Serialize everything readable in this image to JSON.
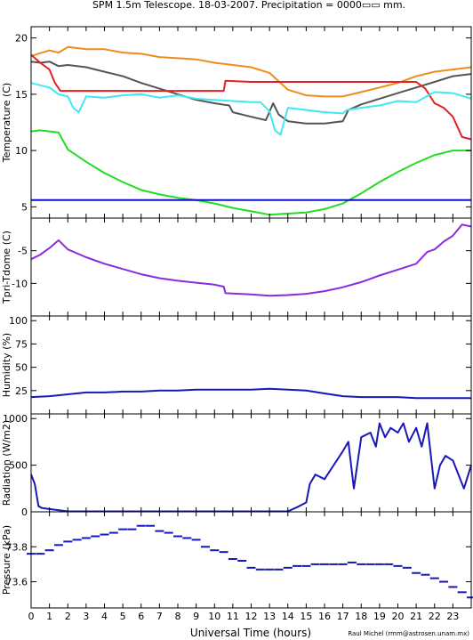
{
  "title": "SPM 1.5m Telescope. 18-03-2007. Precipitation = 0000▭▭ mm.",
  "xlabel": "Universal Time (hours)",
  "credit": "Raul Michel (rmm@astrosen.unam.mx)",
  "chart_data": [
    {
      "type": "line",
      "ylabel": "Temperature (C)",
      "xlim": [
        0,
        24
      ],
      "ylim": [
        4,
        21
      ],
      "yticks": [
        5,
        10,
        15,
        20
      ],
      "xticks": [
        0,
        1,
        2,
        3,
        4,
        5,
        6,
        7,
        8,
        9,
        10,
        11,
        12,
        13,
        14,
        15,
        16,
        17,
        18,
        19,
        20,
        21,
        22,
        23
      ],
      "series": [
        {
          "color": "#f08c1e",
          "x": [
            0,
            1,
            1.5,
            2,
            3,
            4,
            5,
            6,
            7,
            8,
            9,
            10,
            11,
            12,
            13,
            14,
            15,
            16,
            17,
            18,
            19,
            20,
            21,
            22,
            23,
            24
          ],
          "y": [
            18.4,
            18.9,
            18.7,
            19.2,
            19.0,
            19.0,
            18.7,
            18.6,
            18.3,
            18.2,
            18.1,
            17.8,
            17.6,
            17.4,
            16.9,
            15.4,
            14.9,
            14.8,
            14.8,
            15.2,
            15.6,
            16.0,
            16.6,
            17.0,
            17.2,
            17.4
          ]
        },
        {
          "color": "#555555",
          "x": [
            0,
            0.5,
            1,
            1.5,
            2,
            3,
            4,
            5,
            6,
            7,
            8,
            9,
            10,
            10.8,
            11,
            12,
            12.8,
            13.2,
            13.5,
            14,
            15,
            16,
            17,
            17.3,
            18,
            19,
            20,
            21,
            22,
            23,
            24
          ],
          "y": [
            17.9,
            17.8,
            17.9,
            17.5,
            17.6,
            17.4,
            17.0,
            16.6,
            16.0,
            15.5,
            15.0,
            14.5,
            14.2,
            14.0,
            13.4,
            13.0,
            12.7,
            14.2,
            13.2,
            12.6,
            12.4,
            12.4,
            12.6,
            13.6,
            14.1,
            14.6,
            15.1,
            15.6,
            16.1,
            16.6,
            16.8
          ]
        },
        {
          "color": "#e62020",
          "x": [
            0,
            0.5,
            1,
            1.3,
            1.6,
            2,
            3,
            4,
            5,
            6,
            7,
            8,
            9,
            10,
            10.5,
            10.6,
            12,
            14,
            16,
            18,
            20,
            21,
            21.5,
            22,
            22.5,
            23,
            23.5,
            24
          ],
          "y": [
            18.5,
            17.8,
            17.2,
            16.0,
            15.3,
            15.3,
            15.3,
            15.3,
            15.3,
            15.3,
            15.3,
            15.3,
            15.3,
            15.3,
            15.3,
            16.2,
            16.1,
            16.1,
            16.1,
            16.1,
            16.1,
            16.1,
            15.5,
            14.2,
            13.8,
            13.0,
            11.2,
            11.0
          ]
        },
        {
          "color": "#40e8f0",
          "x": [
            0,
            0.5,
            1,
            1.5,
            2,
            2.3,
            2.6,
            3,
            4,
            5,
            6,
            7,
            8,
            9,
            10,
            11,
            12,
            12.5,
            13,
            13.3,
            13.6,
            14,
            15,
            16,
            17,
            17.2,
            18,
            19,
            20,
            21,
            22,
            23,
            24
          ],
          "y": [
            16.0,
            15.8,
            15.6,
            15.0,
            14.8,
            13.8,
            13.4,
            14.8,
            14.7,
            14.9,
            15.0,
            14.7,
            14.9,
            14.6,
            14.5,
            14.4,
            14.3,
            14.3,
            13.5,
            11.8,
            11.4,
            13.8,
            13.6,
            13.4,
            13.3,
            13.6,
            13.8,
            14.0,
            14.4,
            14.3,
            15.2,
            15.1,
            14.6
          ]
        },
        {
          "color": "#22dd22",
          "x": [
            0,
            0.5,
            1,
            1.5,
            2,
            3,
            4,
            5,
            6,
            7,
            8,
            9,
            10,
            11,
            12,
            13,
            14,
            15,
            16,
            17,
            18,
            19,
            20,
            21,
            22,
            23,
            24
          ],
          "y": [
            11.7,
            11.8,
            11.7,
            11.6,
            10.1,
            9.0,
            8.0,
            7.2,
            6.5,
            6.1,
            5.8,
            5.6,
            5.3,
            4.9,
            4.6,
            4.3,
            4.4,
            4.5,
            4.8,
            5.3,
            6.2,
            7.2,
            8.1,
            8.9,
            9.6,
            10.0,
            10.0
          ]
        },
        {
          "color": "#1010cc",
          "x": [
            0,
            24
          ],
          "y": [
            5.6,
            5.6
          ]
        }
      ]
    },
    {
      "type": "line",
      "ylabel": "Tpri-Tdome (C)",
      "xlim": [
        0,
        24
      ],
      "ylim": [
        -15,
        0
      ],
      "yticks": [
        -10,
        -5
      ],
      "series": [
        {
          "color": "#8a2be2",
          "x": [
            0,
            0.5,
            1,
            1.5,
            2,
            3,
            4,
            5,
            6,
            7,
            8,
            9,
            10,
            10.5,
            10.6,
            12,
            13,
            14,
            15,
            16,
            17,
            18,
            19,
            20,
            21,
            21.6,
            22,
            22.5,
            23,
            23.5,
            24
          ],
          "y": [
            -6.3,
            -5.6,
            -4.6,
            -3.4,
            -4.8,
            -6.0,
            -7.0,
            -7.8,
            -8.6,
            -9.2,
            -9.6,
            -9.9,
            -10.2,
            -10.5,
            -11.5,
            -11.7,
            -11.9,
            -11.8,
            -11.6,
            -11.2,
            -10.6,
            -9.8,
            -8.8,
            -7.9,
            -7.0,
            -5.2,
            -4.8,
            -3.6,
            -2.7,
            -1.0,
            -1.3
          ]
        }
      ]
    },
    {
      "type": "line",
      "ylabel": "Humidity (%)",
      "xlim": [
        0,
        24
      ],
      "ylim": [
        0,
        105
      ],
      "yticks": [
        25,
        50,
        75,
        100
      ],
      "series": [
        {
          "color": "#1818b8",
          "x": [
            0,
            1,
            2,
            3,
            4,
            5,
            6,
            7,
            8,
            9,
            10,
            11,
            12,
            13,
            14,
            15,
            16,
            17,
            18,
            19,
            20,
            21,
            22,
            23,
            24
          ],
          "y": [
            18,
            19,
            21,
            23,
            23,
            24,
            24,
            25,
            25,
            26,
            26,
            26,
            26,
            27,
            26,
            25,
            22,
            19,
            18,
            18,
            18,
            17,
            17,
            17,
            17
          ]
        }
      ]
    },
    {
      "type": "line",
      "ylabel": "Radiation (W/m2)",
      "xlim": [
        0,
        24
      ],
      "ylim": [
        0,
        1050
      ],
      "yticks": [
        0,
        500,
        1000
      ],
      "series": [
        {
          "color": "#1818b8",
          "x": [
            0,
            0.2,
            0.4,
            0.6,
            1,
            2,
            3,
            4,
            5,
            6,
            7,
            8,
            9,
            10,
            11,
            12,
            13,
            14,
            14.5,
            15,
            15.2,
            15.5,
            16,
            16.5,
            17,
            17.3,
            17.6,
            18,
            18.5,
            18.8,
            19,
            19.3,
            19.6,
            20,
            20.3,
            20.6,
            21,
            21.3,
            21.6,
            22,
            22.3,
            22.6,
            23,
            23.3,
            23.6,
            24
          ],
          "y": [
            400,
            300,
            60,
            40,
            30,
            5,
            5,
            5,
            5,
            5,
            5,
            5,
            5,
            5,
            5,
            5,
            5,
            5,
            50,
            100,
            300,
            400,
            350,
            500,
            650,
            750,
            250,
            800,
            850,
            700,
            950,
            800,
            900,
            850,
            950,
            750,
            900,
            700,
            950,
            250,
            500,
            600,
            550,
            400,
            250,
            500
          ]
        }
      ]
    },
    {
      "type": "scatter",
      "ylabel": "Pressure (kPa)",
      "xlim": [
        0,
        24
      ],
      "ylim": [
        73.45,
        74.0
      ],
      "yticks": [
        73.6,
        73.8
      ],
      "series": [
        {
          "color": "#1818b8",
          "x": [
            0,
            0.5,
            1,
            1.5,
            2,
            2.5,
            3,
            3.5,
            4,
            4.5,
            5,
            5.5,
            6,
            6.5,
            7,
            7.5,
            8,
            8.5,
            9,
            9.5,
            10,
            10.5,
            11,
            11.5,
            12,
            12.5,
            13,
            13.5,
            14,
            14.5,
            15,
            15.5,
            16,
            16.5,
            17,
            17.5,
            18,
            18.5,
            19,
            19.5,
            20,
            20.5,
            21,
            21.5,
            22,
            22.5,
            23,
            23.5,
            24
          ],
          "y": [
            73.76,
            73.76,
            73.78,
            73.81,
            73.83,
            73.84,
            73.85,
            73.86,
            73.87,
            73.88,
            73.9,
            73.9,
            73.92,
            73.92,
            73.89,
            73.88,
            73.86,
            73.85,
            73.84,
            73.8,
            73.78,
            73.77,
            73.73,
            73.72,
            73.68,
            73.67,
            73.67,
            73.67,
            73.68,
            73.69,
            73.69,
            73.7,
            73.7,
            73.7,
            73.7,
            73.71,
            73.7,
            73.7,
            73.7,
            73.7,
            73.69,
            73.68,
            73.65,
            73.64,
            73.62,
            73.6,
            73.57,
            73.54,
            73.51
          ]
        }
      ]
    }
  ]
}
